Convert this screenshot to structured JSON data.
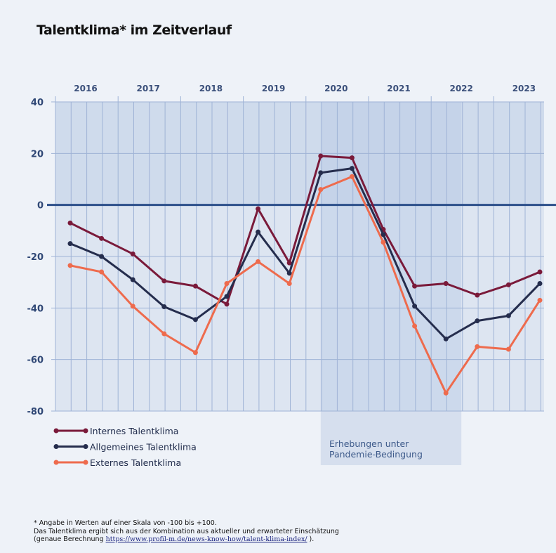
{
  "title": "Talentklima* im Zeitverlauf",
  "chart_data": {
    "type": "line",
    "title": "Talentklima* im Zeitverlauf",
    "years": [
      "2016",
      "2017",
      "2018",
      "2019",
      "2020",
      "2021",
      "2022",
      "2023"
    ],
    "x": [
      "2016a",
      "2016b",
      "2017a",
      "2017b",
      "2018a",
      "2018b",
      "2019a",
      "2019b",
      "2020a",
      "2020b",
      "2021a",
      "2021b",
      "2022a",
      "2022b",
      "2023a",
      "2023b"
    ],
    "ylim": [
      -80,
      40
    ],
    "yticks": [
      "40",
      "20",
      "0",
      "-20",
      "-40",
      "-60",
      "-80"
    ],
    "grid": true,
    "legend_position": "bottom-left",
    "series": [
      {
        "name": "Internes Talentklima",
        "color": "#7a1a3a",
        "values": [
          -7,
          -13,
          -19,
          -29.5,
          -31.5,
          -38.5,
          -1.5,
          -22.5,
          19,
          18.3,
          -9.5,
          -31.5,
          -30.5,
          -35,
          -31,
          -26
        ]
      },
      {
        "name": "Allgemeines Talentklima",
        "color": "#252d4d",
        "values": [
          -15,
          -20,
          -29,
          -39.5,
          -44.5,
          -35.5,
          -10.5,
          -26.5,
          12.5,
          14.2,
          -11.5,
          -39.3,
          -52,
          -45,
          -43,
          -30.5
        ]
      },
      {
        "name": "Externes Talentklima",
        "color": "#ee6b4d",
        "values": [
          -23.5,
          -26,
          -39.3,
          -50,
          -57.3,
          -30.5,
          -22,
          -30.5,
          6,
          11,
          -14.5,
          -47,
          -73,
          -55,
          -56,
          -37
        ]
      }
    ],
    "annotation": {
      "line1": "Erhebungen unter",
      "line2": "Pandemie-Bedingung",
      "x_start": "2020a",
      "x_end": "2022a"
    }
  },
  "footnote": {
    "line1": "* Angabe in Werten auf einer Skala von -100 bis +100.",
    "line2": "Das Talentklima ergibt sich aus der Kombination aus aktueller und erwarteter Einschätzung",
    "line3_prefix": "(genaue Berechnung ",
    "link": "https://www.profil-m.de/news-know-how/talent-klima-index/",
    "line3_suffix": " )."
  }
}
